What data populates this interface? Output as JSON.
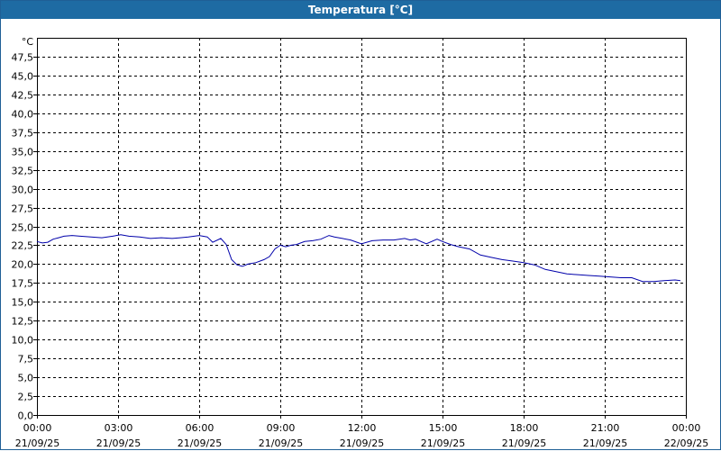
{
  "window": {
    "title": "Temperatura [°C]"
  },
  "chart_data": {
    "type": "line",
    "title": "Temperatura [°C]",
    "y_unit_label": "°C",
    "ylim": [
      0,
      50
    ],
    "y_ticks": [
      "0,0",
      "2,5",
      "5,0",
      "7,5",
      "10,0",
      "12,5",
      "15,0",
      "17,5",
      "20,0",
      "22,5",
      "25,0",
      "27,5",
      "30,0",
      "32,5",
      "35,0",
      "37,5",
      "40,0",
      "42,5",
      "45,0",
      "47,5"
    ],
    "y_tick_values": [
      0,
      2.5,
      5,
      7.5,
      10,
      12.5,
      15,
      17.5,
      20,
      22.5,
      25,
      27.5,
      30,
      32.5,
      35,
      37.5,
      40,
      42.5,
      45,
      47.5
    ],
    "x_ticks": [
      {
        "time": "00:00",
        "date": "21/09/25",
        "hours": 0
      },
      {
        "time": "03:00",
        "date": "21/09/25",
        "hours": 3
      },
      {
        "time": "06:00",
        "date": "21/09/25",
        "hours": 6
      },
      {
        "time": "09:00",
        "date": "21/09/25",
        "hours": 9
      },
      {
        "time": "12:00",
        "date": "21/09/25",
        "hours": 12
      },
      {
        "time": "15:00",
        "date": "21/09/25",
        "hours": 15
      },
      {
        "time": "18:00",
        "date": "21/09/25",
        "hours": 18
      },
      {
        "time": "21:00",
        "date": "21/09/25",
        "hours": 21
      },
      {
        "time": "00:00",
        "date": "22/09/25",
        "hours": 24
      }
    ],
    "xlim_hours": [
      0,
      24
    ],
    "grid": true,
    "line_color": "#0000aa",
    "series": [
      {
        "name": "",
        "x_hours": [
          0,
          0.2,
          0.4,
          0.6,
          0.8,
          1.0,
          1.3,
          1.6,
          2.0,
          2.4,
          2.8,
          3.1,
          3.4,
          3.8,
          4.2,
          4.6,
          5.0,
          5.3,
          5.6,
          6.0,
          6.3,
          6.5,
          6.8,
          7.0,
          7.2,
          7.4,
          7.6,
          7.8,
          8.1,
          8.4,
          8.6,
          8.8,
          9.0,
          9.2,
          9.4,
          9.6,
          9.9,
          10.2,
          10.5,
          10.8,
          11.0,
          11.3,
          11.6,
          12.0,
          12.4,
          12.8,
          13.2,
          13.6,
          13.8,
          14.0,
          14.4,
          14.8,
          15.0,
          15.3,
          15.6,
          16.0,
          16.4,
          16.8,
          17.2,
          17.6,
          18.0,
          18.4,
          18.8,
          19.2,
          19.6,
          20.0,
          20.4,
          20.8,
          21.2,
          21.6,
          22.0,
          22.4,
          22.8,
          23.2,
          23.6,
          23.8
        ],
        "values": [
          23.0,
          22.8,
          22.9,
          23.3,
          23.5,
          23.7,
          23.8,
          23.7,
          23.6,
          23.5,
          23.7,
          23.9,
          23.7,
          23.6,
          23.4,
          23.5,
          23.4,
          23.5,
          23.6,
          23.8,
          23.6,
          22.9,
          23.4,
          22.6,
          20.6,
          19.9,
          19.7,
          20.0,
          20.2,
          20.6,
          21.0,
          22.0,
          22.5,
          22.3,
          22.5,
          22.6,
          23.0,
          23.1,
          23.3,
          23.8,
          23.6,
          23.4,
          23.2,
          22.7,
          23.1,
          23.2,
          23.2,
          23.4,
          23.2,
          23.3,
          22.7,
          23.3,
          23.0,
          22.6,
          22.3,
          22.0,
          21.2,
          20.9,
          20.6,
          20.4,
          20.2,
          19.9,
          19.3,
          19.0,
          18.7,
          18.6,
          18.5,
          18.4,
          18.3,
          18.2,
          18.2,
          17.7,
          17.7,
          17.8,
          17.9,
          17.8
        ]
      }
    ]
  }
}
